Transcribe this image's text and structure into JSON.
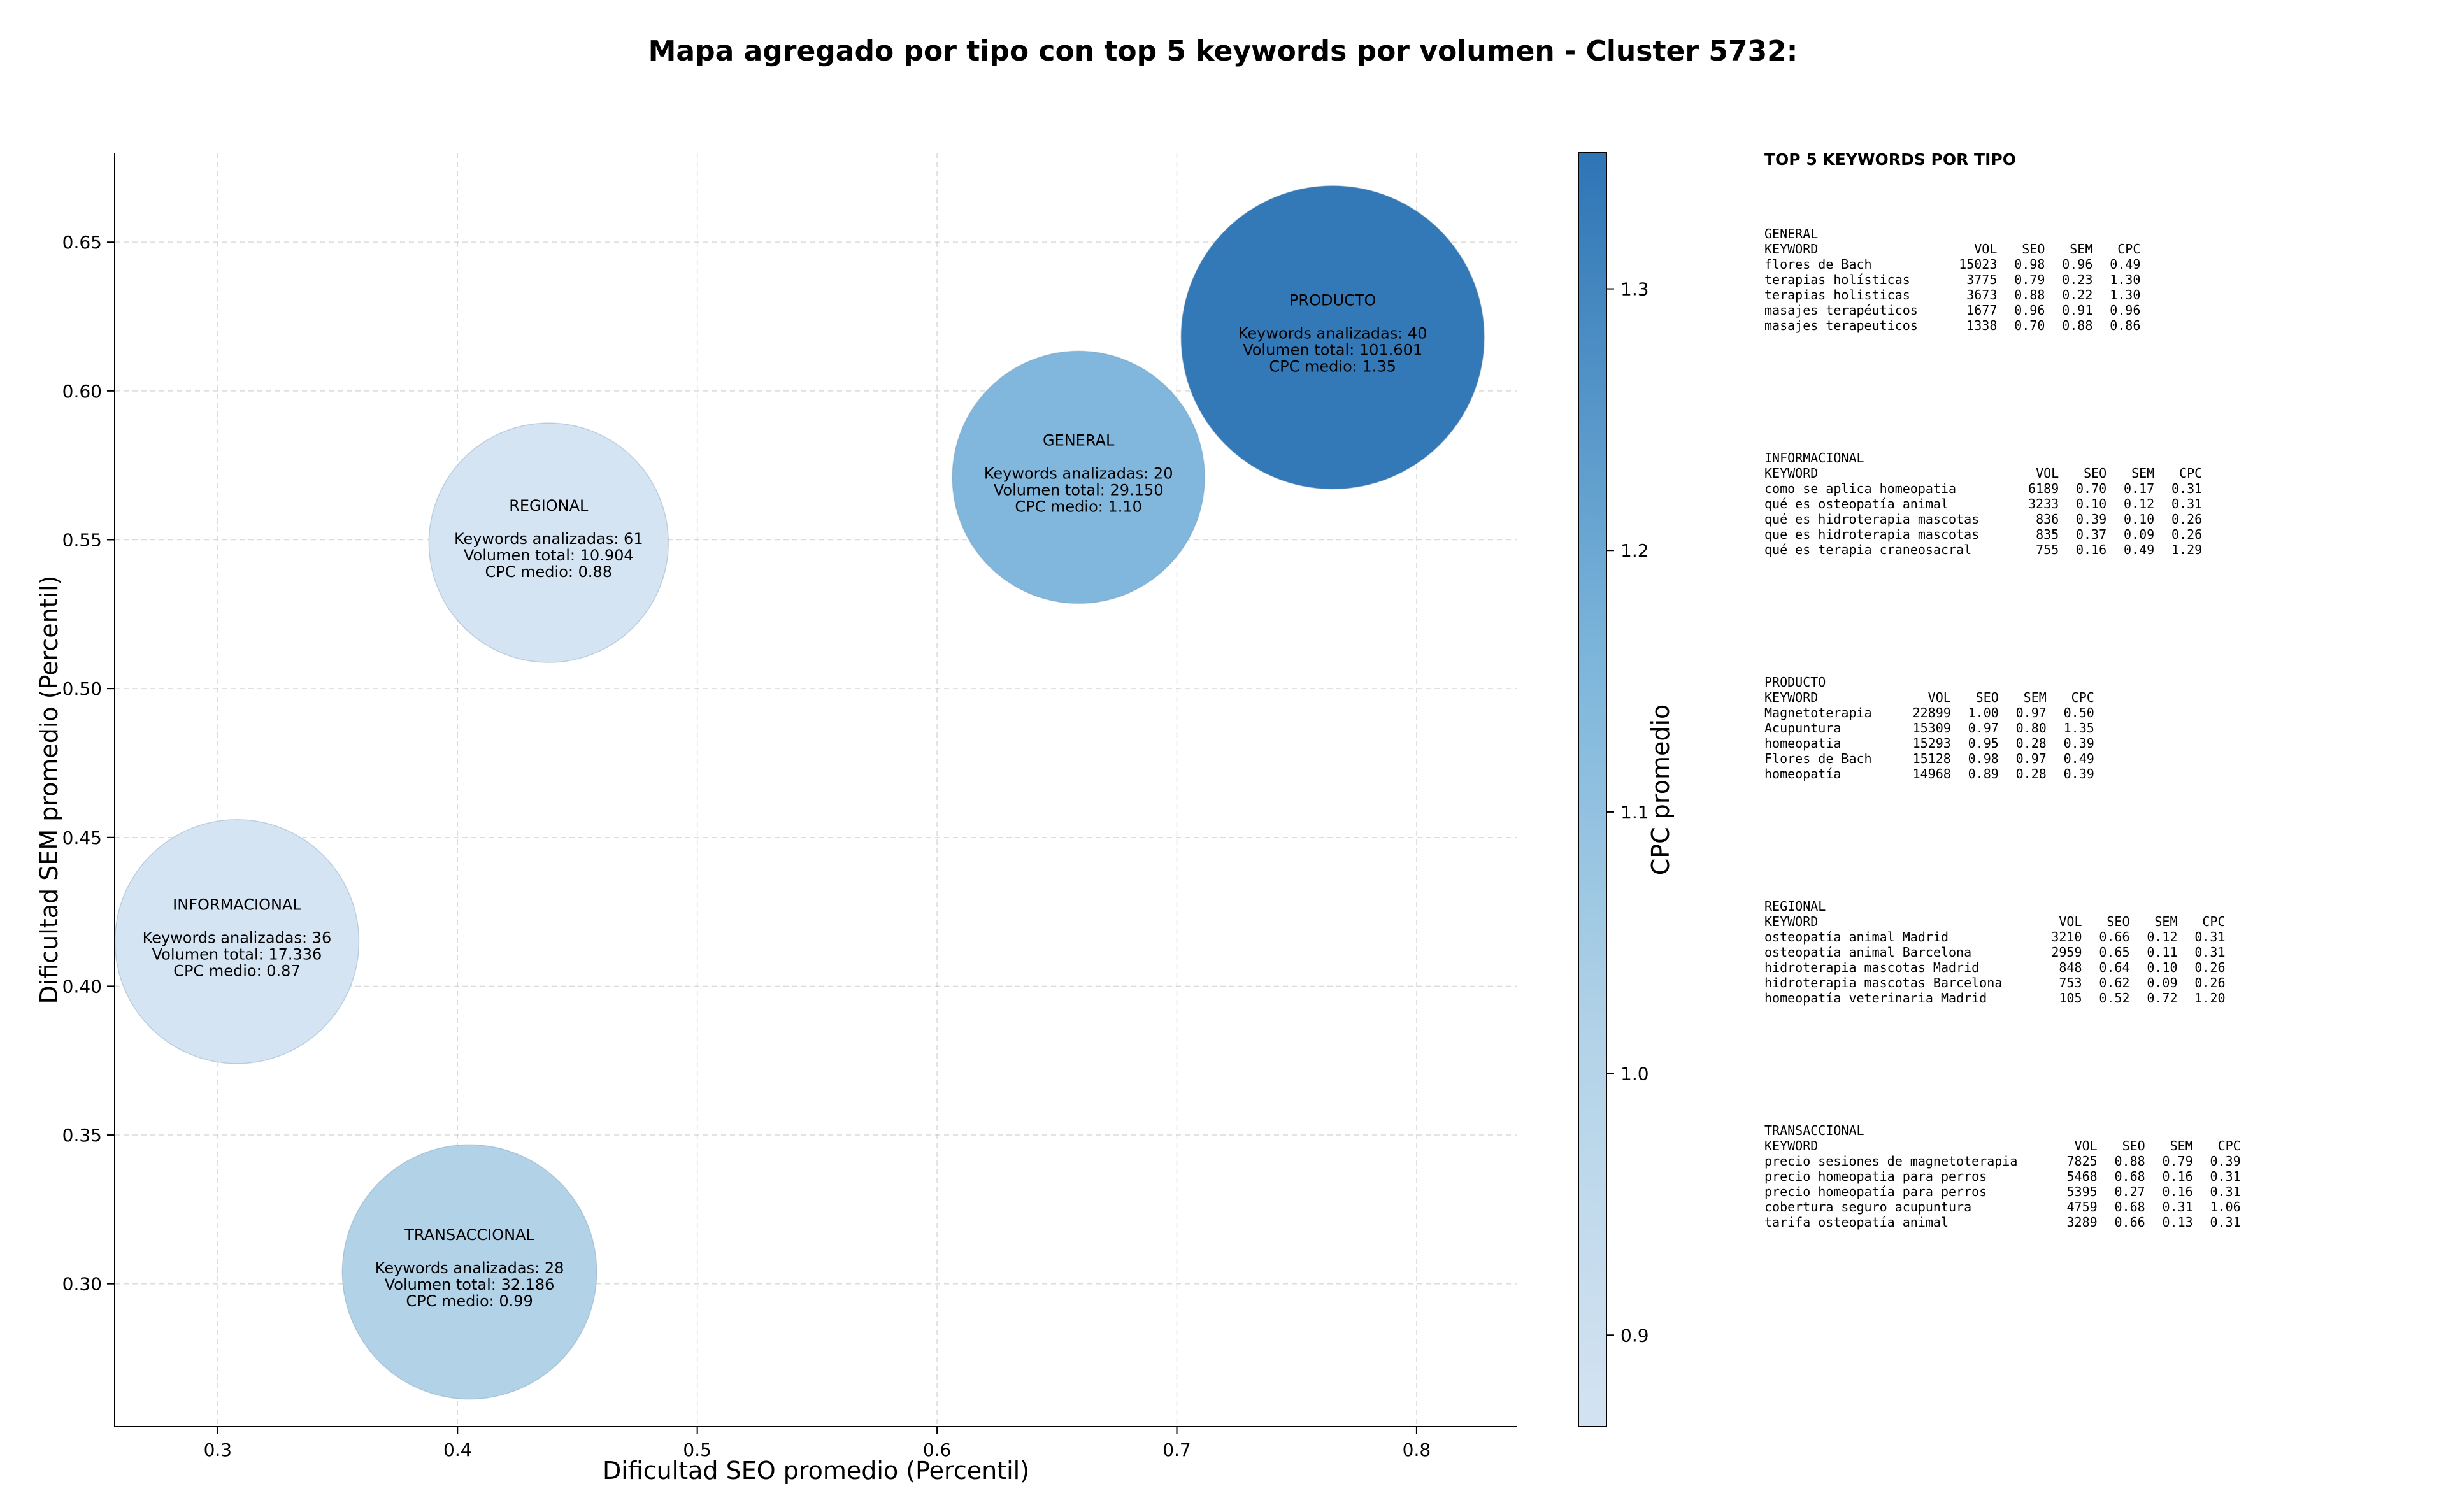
{
  "title": "Mapa agregado por tipo con top 5 keywords por volumen - Cluster 5732:",
  "chart_data": {
    "type": "scatter",
    "title": "Mapa agregado por tipo con top 5 keywords por volumen - Cluster 5732:",
    "xlabel": "Dificultad SEO promedio (Percentil)",
    "ylabel": "Dificultad SEM promedio (Percentil)",
    "colorbar_label": "CPC promedio",
    "xlim": [
      0.257,
      0.842
    ],
    "ylim": [
      0.252,
      0.68
    ],
    "xticks": [
      "0.3",
      "0.4",
      "0.5",
      "0.6",
      "0.7",
      "0.8"
    ],
    "yticks": [
      "0.30",
      "0.35",
      "0.40",
      "0.45",
      "0.50",
      "0.55",
      "0.60",
      "0.65"
    ],
    "colorbar_ticks": [
      "0.9",
      "1.0",
      "1.1",
      "1.2",
      "1.3"
    ],
    "colorbar_range": [
      0.865,
      1.352
    ],
    "grid": true,
    "points": [
      {
        "name": "PRODUCTO",
        "x": 0.765,
        "y": 0.618,
        "cpc": 1.35,
        "keywords": "Keywords analizadas: 40",
        "volume": "Volumen total: 101.601",
        "cpc_text": "CPC medio: 1.35",
        "color": "#2d75b5"
      },
      {
        "name": "GENERAL",
        "x": 0.659,
        "y": 0.571,
        "cpc": 1.1,
        "keywords": "Keywords analizadas: 20",
        "volume": "Volumen total: 29.150",
        "cpc_text": "CPC medio: 1.10",
        "color": "#7db5db"
      },
      {
        "name": "REGIONAL",
        "x": 0.438,
        "y": 0.549,
        "cpc": 0.88,
        "keywords": "Keywords analizadas: 61",
        "volume": "Volumen total: 10.904",
        "cpc_text": "CPC medio: 0.88",
        "color": "#d3e3f2"
      },
      {
        "name": "INFORMACIONAL",
        "x": 0.308,
        "y": 0.415,
        "cpc": 0.87,
        "keywords": "Keywords analizadas: 36",
        "volume": "Volumen total: 17.336",
        "cpc_text": "CPC medio: 0.87",
        "color": "#d4e3f2"
      },
      {
        "name": "TRANSACCIONAL",
        "x": 0.405,
        "y": 0.304,
        "cpc": 0.99,
        "keywords": "Keywords analizadas: 28",
        "volume": "Volumen total: 32.186",
        "cpc_text": "CPC medio: 0.99",
        "color": "#b0d1e7"
      }
    ]
  },
  "panel": {
    "title": "TOP 5 KEYWORDS POR TIPO",
    "columns": [
      "KEYWORD",
      "VOL",
      "SEO",
      "SEM",
      "CPC"
    ],
    "groups": [
      {
        "name": "GENERAL",
        "rows": [
          [
            "flores de Bach",
            "15023",
            "0.98",
            "0.96",
            "0.49"
          ],
          [
            "terapias holísticas",
            "3775",
            "0.79",
            "0.23",
            "1.30"
          ],
          [
            "terapias holisticas",
            "3673",
            "0.88",
            "0.22",
            "1.30"
          ],
          [
            "masajes terapéuticos",
            "1677",
            "0.96",
            "0.91",
            "0.96"
          ],
          [
            "masajes terapeuticos",
            "1338",
            "0.70",
            "0.88",
            "0.86"
          ]
        ]
      },
      {
        "name": "INFORMACIONAL",
        "rows": [
          [
            "como se aplica homeopatia",
            "6189",
            "0.70",
            "0.17",
            "0.31"
          ],
          [
            "qué es osteopatía animal",
            "3233",
            "0.10",
            "0.12",
            "0.31"
          ],
          [
            "qué es hidroterapia mascotas",
            "836",
            "0.39",
            "0.10",
            "0.26"
          ],
          [
            "que es hidroterapia mascotas",
            "835",
            "0.37",
            "0.09",
            "0.26"
          ],
          [
            "qué es terapia craneosacral",
            "755",
            "0.16",
            "0.49",
            "1.29"
          ]
        ]
      },
      {
        "name": "PRODUCTO",
        "rows": [
          [
            "Magnetoterapia",
            "22899",
            "1.00",
            "0.97",
            "0.50"
          ],
          [
            "Acupuntura",
            "15309",
            "0.97",
            "0.80",
            "1.35"
          ],
          [
            "homeopatia",
            "15293",
            "0.95",
            "0.28",
            "0.39"
          ],
          [
            "Flores de Bach",
            "15128",
            "0.98",
            "0.97",
            "0.49"
          ],
          [
            "homeopatía",
            "14968",
            "0.89",
            "0.28",
            "0.39"
          ]
        ]
      },
      {
        "name": "REGIONAL",
        "rows": [
          [
            "osteopatía animal Madrid",
            "3210",
            "0.66",
            "0.12",
            "0.31"
          ],
          [
            "osteopatía animal Barcelona",
            "2959",
            "0.65",
            "0.11",
            "0.31"
          ],
          [
            "hidroterapia mascotas Madrid",
            "848",
            "0.64",
            "0.10",
            "0.26"
          ],
          [
            "hidroterapia mascotas Barcelona",
            "753",
            "0.62",
            "0.09",
            "0.26"
          ],
          [
            "homeopatía veterinaria Madrid",
            "105",
            "0.52",
            "0.72",
            "1.20"
          ]
        ]
      },
      {
        "name": "TRANSACCIONAL",
        "rows": [
          [
            "precio sesiones de magnetoterapia",
            "7825",
            "0.88",
            "0.79",
            "0.39"
          ],
          [
            "precio homeopatia para perros",
            "5468",
            "0.68",
            "0.16",
            "0.31"
          ],
          [
            "precio homeopatía para perros",
            "5395",
            "0.27",
            "0.16",
            "0.31"
          ],
          [
            "cobertura seguro acupuntura",
            "4759",
            "0.68",
            "0.31",
            "1.06"
          ],
          [
            "tarifa osteopatía animal",
            "3289",
            "0.66",
            "0.13",
            "0.31"
          ]
        ]
      }
    ]
  },
  "colors": {
    "colorbar_low": "#d4e3f2",
    "colorbar_high": "#2e75b6"
  }
}
